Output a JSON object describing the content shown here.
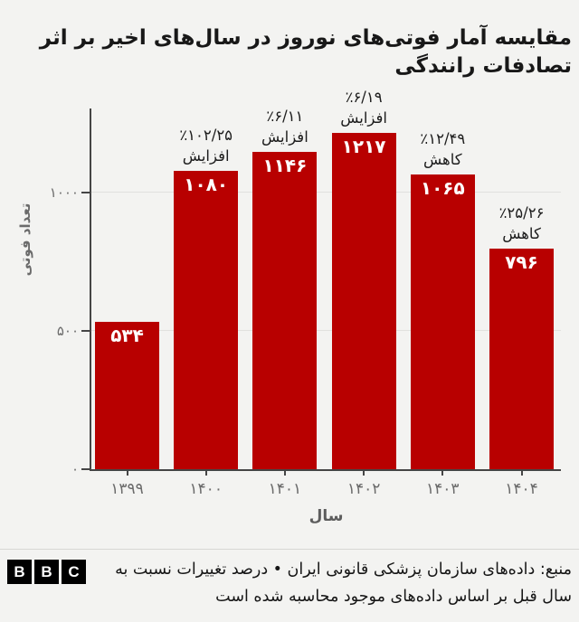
{
  "chart_data": {
    "type": "bar",
    "title": "مقایسه آمار فوتی‌های نوروز در سال‌های اخیر بر اثر تصادفات رانندگی",
    "xlabel": "سال",
    "ylabel": "تعداد فوتی",
    "ylim": [
      0,
      1304
    ],
    "grid": true,
    "legend": false,
    "bar_color": "#b80000",
    "axis_color": "#454545",
    "categories": [
      "۱۳۹۹",
      "۱۴۰۰",
      "۱۴۰۱",
      "۱۴۰۲",
      "۱۴۰۳",
      "۱۴۰۴"
    ],
    "values": [
      534,
      1080,
      1146,
      1217,
      1065,
      796
    ],
    "value_labels": [
      "۵۳۴",
      "۱۰۸۰",
      "۱۱۴۶",
      "۱۲۱۷",
      "۱۰۶۵",
      "۷۹۶"
    ],
    "yticks": [
      {
        "value": 0,
        "label": "۰"
      },
      {
        "value": 500,
        "label": "۵۰۰"
      },
      {
        "value": 1000,
        "label": "۱۰۰۰"
      }
    ],
    "annotations": [
      null,
      {
        "pct": "٪۱۰۲/۲۵",
        "word": "افزایش"
      },
      {
        "pct": "٪۶/۱۱",
        "word": "افزایش"
      },
      {
        "pct": "٪۶/۱۹",
        "word": "افزایش"
      },
      {
        "pct": "٪۱۲/۴۹",
        "word": "کاهش"
      },
      {
        "pct": "٪۲۵/۲۶",
        "word": "کاهش"
      }
    ]
  },
  "footer": {
    "logo_letters": [
      "B",
      "B",
      "C"
    ],
    "source_text": "منبع: داده‌های سازمان پزشکی قانونی ایران • درصد تغییرات نسبت به سال قبل بر اساس داده‌های موجود محاسبه شده است"
  }
}
